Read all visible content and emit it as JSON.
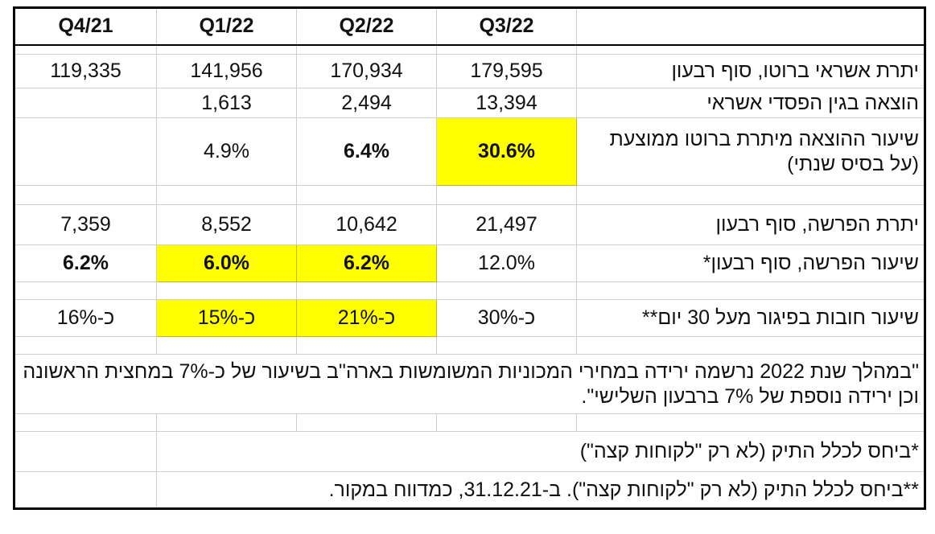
{
  "headers": [
    "Q4/21",
    "Q1/22",
    "Q2/22",
    "Q3/22",
    ""
  ],
  "rows": {
    "credit_balance": {
      "label": "יתרת אשראי ברוטו, סוף רבעון",
      "values": [
        "119,335",
        "141,956",
        "170,934",
        "179,595"
      ]
    },
    "loss_expense": {
      "label": "הוצאה בגין הפסדי אשראי",
      "values": [
        "",
        "1,613",
        "2,494",
        "13,394"
      ]
    },
    "expense_rate": {
      "label": "שיעור ההוצאה מיתרת ברוטו ממוצעת (על בסיס שנתי)",
      "values": [
        "",
        "4.9%",
        "6.4%",
        "30.6%"
      ]
    },
    "allowance_balance": {
      "label": "יתרת הפרשה, סוף רבעון",
      "values": [
        "7,359",
        "8,552",
        "10,642",
        "21,497"
      ]
    },
    "allowance_rate": {
      "label": "שיעור הפרשה, סוף רבעון*",
      "values": [
        "6.2%",
        "6.0%",
        "6.2%",
        "12.0%"
      ]
    },
    "delinquency": {
      "label": "שיעור חובות בפיגור מעל 30 יום**",
      "values": [
        "כ-16%",
        "כ-15%",
        "כ-21%",
        "כ-30%"
      ]
    }
  },
  "quote": "\"במהלך שנת 2022 נרשמה ירידה במחירי המכוניות המשומשות בארה\"ב בשיעור של כ-7% במחצית הראשונה וכן ירידה נוספת של 7% ברבעון השלישי\".",
  "footnote1": "*ביחס לכלל התיק (לא רק \"לקוחות קצה\")",
  "footnote2": "**ביחס לכלל התיק (לא רק \"לקוחות קצה\"). ב-31.12.21, כמדווח במקור.",
  "colors": {
    "highlight": "#ffff00",
    "border": "#000000",
    "grid": "#cfcfcf"
  }
}
